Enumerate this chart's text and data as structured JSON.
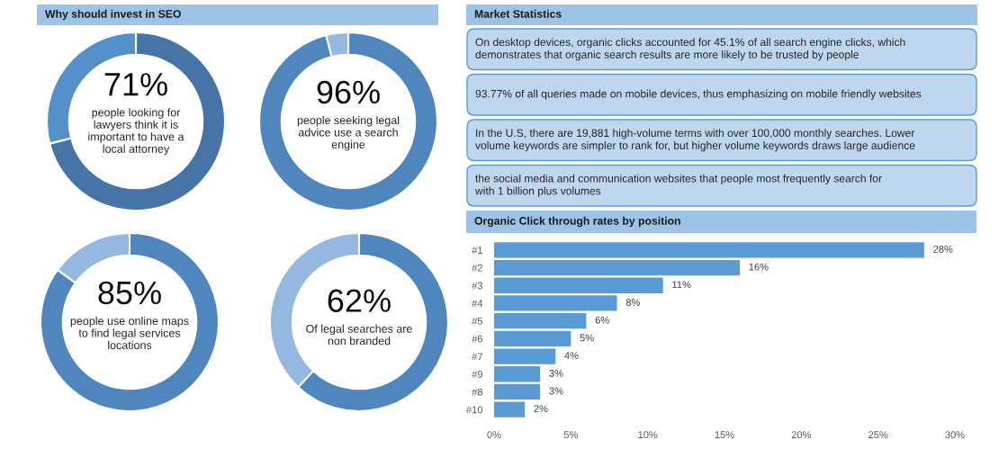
{
  "chart_data": [
    {
      "type": "other",
      "title": "Why should invest in SEO"
    },
    {
      "type": "donut",
      "categories": [
        null,
        null
      ],
      "values": [
        71,
        29
      ],
      "colors": [
        "#4674a6",
        "#5490c9"
      ],
      "value_labels": [
        "71%",
        null
      ],
      "annotations": [
        "people looking for\nlawyers think it is\nimportant to have a\nlocal attorney"
      ]
    },
    {
      "type": "donut",
      "categories": [
        null,
        null
      ],
      "values": [
        96,
        4
      ],
      "colors": [
        "#4f86bd",
        "#95b8e0"
      ],
      "value_labels": [
        "96%",
        null
      ],
      "annotations": [
        "people seeking legal\nadvice use a search\nengine"
      ]
    },
    {
      "type": "donut",
      "categories": [
        null,
        null
      ],
      "values": [
        85,
        15
      ],
      "colors": [
        "#4f86bd",
        "#95b8e0"
      ],
      "value_labels": [
        "85%",
        null
      ],
      "annotations": [
        "people use online maps\nto find legal services\nlocations"
      ]
    },
    {
      "type": "donut",
      "categories": [
        null,
        null
      ],
      "values": [
        62,
        38
      ],
      "colors": [
        "#4f86bd",
        "#95b8e0"
      ],
      "value_labels": [
        "62%",
        null
      ],
      "annotations": [
        "Of legal searches are\nnon branded"
      ]
    },
    {
      "type": "other",
      "title": "Market Statistics",
      "annotations": [
        "On desktop devices, organic clicks accounted for 45.1% of all search engine clicks, which\ndemonstrates that organic search results are more likely to be trusted by people",
        "93.77% of all queries made on mobile devices, thus emphasizing on mobile friendly websites",
        "In the U.S, there are 19,881 high-volume terms with over 100,000 monthly searches. Lower\nvolume keywords are simpler to rank for, but higher volume keywords draws large audience",
        "the social media and communication websites that people most frequently search for\nwith 1 billion plus volumes"
      ]
    },
    {
      "type": "bar",
      "orientation": "horizontal",
      "title": "Organic Click through rates by position",
      "categories": [
        "#1",
        "#2",
        "#3",
        "#4",
        "#5",
        "#6",
        "#7",
        "#9",
        "#8",
        "#10"
      ],
      "values": [
        28,
        16,
        11,
        8,
        6,
        5,
        4,
        3,
        3,
        2
      ],
      "color": "#5b9bd5",
      "value_labels": [
        "28%",
        "16%",
        "11%",
        "8%",
        "6%",
        "5%",
        "4%",
        "3%",
        "3%",
        "2%"
      ],
      "xlim": [
        0,
        30
      ],
      "xticks": [
        {
          "value": 0,
          "label": "0%"
        },
        {
          "value": 5,
          "label": "5%"
        },
        {
          "value": 10,
          "label": "10%"
        },
        {
          "value": 15,
          "label": "15%"
        },
        {
          "value": 20,
          "label": "20%"
        },
        {
          "value": 25,
          "label": "25%"
        },
        {
          "value": 30,
          "label": "30%"
        }
      ]
    }
  ]
}
